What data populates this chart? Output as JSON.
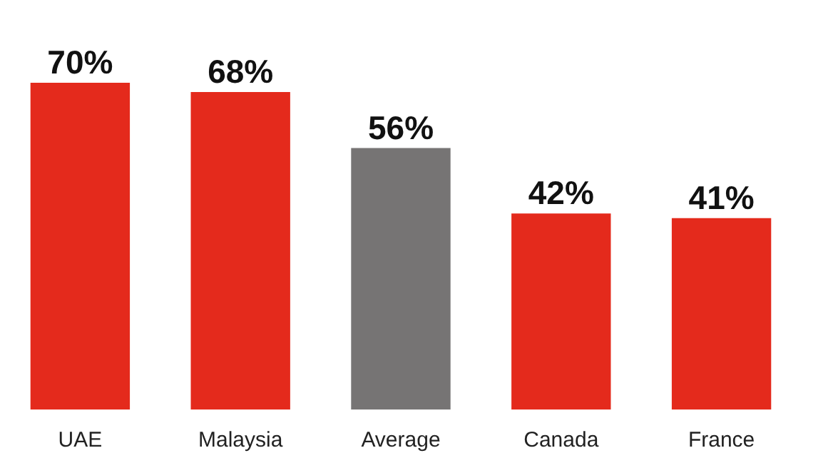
{
  "chart_data": {
    "type": "bar",
    "categories": [
      "UAE",
      "Malaysia",
      "Average",
      "Canada",
      "France"
    ],
    "values": [
      70,
      68,
      56,
      42,
      41
    ],
    "colors": [
      "#e42a1c",
      "#e42a1c",
      "#767474",
      "#e42a1c",
      "#e42a1c"
    ],
    "value_labels": [
      "70%",
      "68%",
      "56%",
      "42%",
      "41%"
    ]
  }
}
